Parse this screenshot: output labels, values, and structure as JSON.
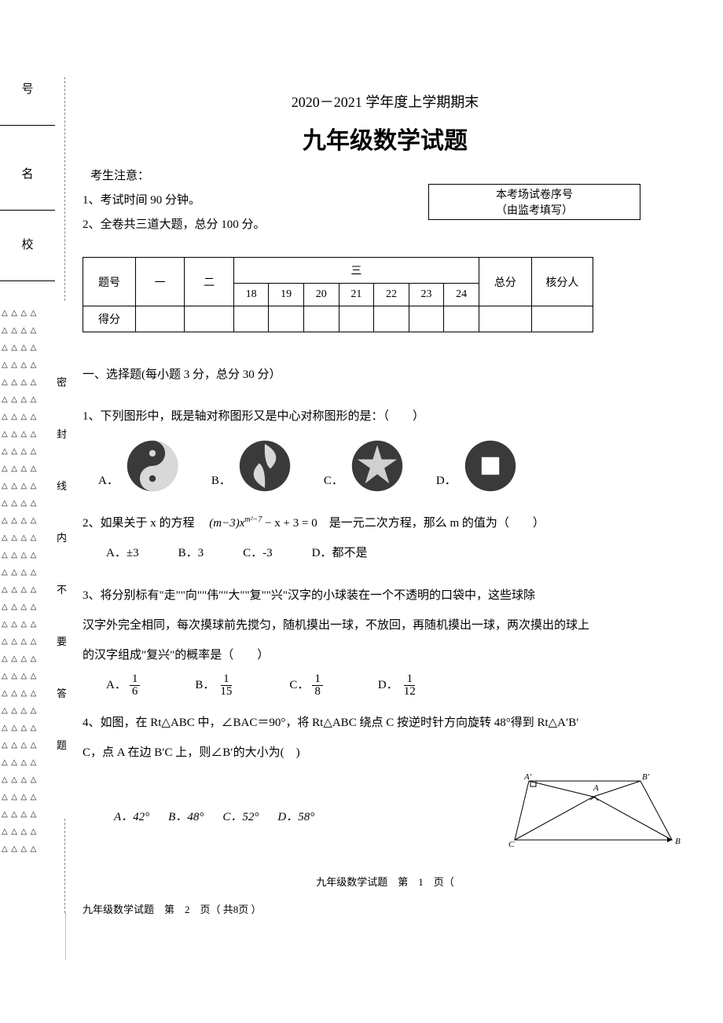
{
  "sidebar": {
    "field_hao": "号",
    "field_ming": "名",
    "field_xiao": "校",
    "triangle_unit": "△",
    "vertical_text": [
      "密",
      "封",
      "线",
      "内",
      "不",
      "要",
      "答",
      "题"
    ],
    "triangle_row_count": 32
  },
  "header": {
    "subtitle": "2020－2021 学年度上学期期末",
    "title": "九年级数学试题"
  },
  "notice": {
    "label": "考生注意：",
    "item1": "1、考试时间 90 分钟。",
    "item2": "2、全卷共三道大题，总分 100 分。",
    "seq_label": "本考场试卷序号",
    "seq_sub": "（由监考填写）"
  },
  "score_table": {
    "col_tihao": "题号",
    "col_yi": "一",
    "col_er": "二",
    "col_san": "三",
    "col_zongfen": "总分",
    "col_hefenren": "核分人",
    "sub_cols": [
      "18",
      "19",
      "20",
      "21",
      "22",
      "23",
      "24"
    ],
    "row_defen": "得分"
  },
  "section1": {
    "title": "一、选择题(每小题 3 分，总分 30 分）"
  },
  "q1": {
    "text": "1、下列图形中，既是轴对称图形又是中心对称图形的是：（　　）",
    "optA": "A．",
    "optB": "B．",
    "optC": "C．",
    "optD": "D．",
    "icon_fill": "#3a3a3a",
    "icon_bg": "#bbb"
  },
  "q2": {
    "text_prefix": "2、如果关于 x 的方程　",
    "formula": "(m−3)x",
    "exp": "m²−7",
    "text_suffix": " − x + 3 = 0　是一元二次方程，那么 m 的值为（　　）",
    "optA": "A．±3",
    "optB": "B．3",
    "optC": "C．-3",
    "optD": "D．都不是"
  },
  "q3": {
    "line1": "3、将分别标有\"走\"\"向\"\"伟\"\"大\"\"复\"\"兴\"汉字的小球装在一个不透明的口袋中，这些球除",
    "line2": "汉字外完全相同，每次摸球前先搅匀，随机摸出一球，不放回，再随机摸出一球，两次摸出的球上",
    "line3": "的汉字组成\"复兴\"的概率是（　　）",
    "optA": "A．",
    "fracA_n": "1",
    "fracA_d": "6",
    "optB": "B．",
    "fracB_n": "1",
    "fracB_d": "15",
    "optC": "C．",
    "fracC_n": "1",
    "fracC_d": "8",
    "optD": "D．",
    "fracD_n": "1",
    "fracD_d": "12"
  },
  "q4": {
    "line1": "4、如图，在 Rt△ABC 中，∠BAC＝90°，将 Rt△ABC 绕点 C 按逆时针方向旋转 48°得到 Rt△A′B′",
    "line2": "C，点 A 在边 B′C 上，则∠B′的大小为(　)",
    "optA": "A．42°",
    "optB": "B．48°",
    "optC": "C．52°",
    "optD": "D．58°",
    "fig": {
      "Aprime": "A′",
      "Bprime": "B′",
      "A": "A",
      "B": "B",
      "C": "C"
    }
  },
  "footer": {
    "line1": "九年级数学试题　第　1　页（",
    "line2": "九年级数学试题　第　2　页（ 共8页 ）"
  }
}
